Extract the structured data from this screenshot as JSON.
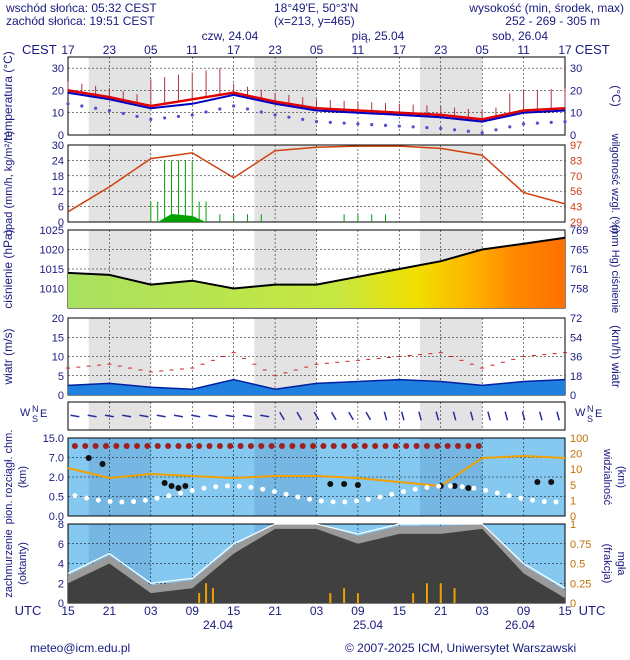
{
  "header": {
    "sunrise": "wschód słońca: 05:32 CEST",
    "sunset": "zachód słońca: 19:51 CEST",
    "coords": "18°49'E, 50°3'N",
    "grid": "(x=213, y=465)",
    "elev_title": "wysokość (min, środek, max)",
    "elev_values": "252 - 269 - 305 m"
  },
  "timezone_top": "CEST",
  "timezone_bottom": "UTC",
  "days_top": [
    "czw, 24.04",
    "pią, 25.04",
    "sob, 26.04"
  ],
  "hours_top": [
    "17",
    "23",
    "05",
    "11",
    "17",
    "23",
    "05",
    "11",
    "17",
    "23",
    "05",
    "11",
    "17"
  ],
  "hours_bottom": [
    "15",
    "21",
    "03",
    "09",
    "15",
    "21",
    "03",
    "09",
    "15",
    "21",
    "03",
    "09",
    "15"
  ],
  "days_bottom": [
    "24.04",
    "25.04",
    "26.04"
  ],
  "footer": {
    "email": "meteo@icm.edu.pl",
    "copyright": "© 2007-2025 ICM, Uniwersytet Warszawski"
  },
  "colors": {
    "text": "#1a1a80",
    "night": "#d0d0d0",
    "temp_line": "#e00000",
    "dew_line": "#0000c0",
    "humidity": "#d04010",
    "rain": "#00a000",
    "sky": "#85c8f0",
    "cloud_dark": "#404040",
    "fog": "#f0a000"
  },
  "chart_data": [
    {
      "type": "line",
      "panel": "temperature",
      "ylabel": "temperatura (°C)",
      "ylabel_right": "(°C)",
      "ylim": [
        0,
        35
      ],
      "yticks": [
        0,
        10,
        20,
        30
      ],
      "x_hours_from_start": [
        0,
        6,
        12,
        18,
        24,
        30,
        36,
        42,
        48,
        54,
        60,
        66,
        72
      ],
      "series": [
        {
          "values": [
            20,
            17,
            13,
            16,
            19,
            15,
            12,
            11,
            10,
            9,
            7,
            11,
            12
          ]
        },
        {
          "values": [
            19,
            16,
            12,
            14,
            18,
            14,
            11,
            10,
            9,
            8,
            6,
            10,
            11
          ]
        }
      ]
    },
    {
      "type": "line",
      "panel": "precipitation",
      "ylabel": "opad (mm/h, kg/m²/h)",
      "ylabel_right": "wilgotność wzgl. (%)",
      "ylim": [
        0,
        30
      ],
      "yticks": [
        0,
        6,
        12,
        18,
        24,
        30
      ],
      "yticks_right": [
        29,
        43,
        56,
        70,
        83,
        97
      ],
      "x_hours_from_start": [
        0,
        6,
        12,
        18,
        24,
        30,
        36,
        42,
        48,
        54,
        60,
        66,
        72
      ],
      "series": [
        {
          "values": [
            38,
            60,
            85,
            90,
            68,
            92,
            95,
            96,
            96,
            94,
            88,
            55,
            45
          ]
        }
      ]
    },
    {
      "type": "area",
      "panel": "pressure",
      "ylabel": "ciśnienie (hPa)",
      "ylabel_right": "(mm Hg) ciśnienie",
      "ylim": [
        1005,
        1025
      ],
      "yticks": [
        1010,
        1015,
        1020,
        1025
      ],
      "yticks_right": [
        758,
        761,
        765,
        769
      ],
      "x_hours_from_start": [
        0,
        6,
        12,
        18,
        24,
        30,
        36,
        42,
        48,
        54,
        60,
        66,
        72
      ],
      "series": [
        {
          "values": [
            1014,
            1013.5,
            1011,
            1012,
            1010,
            1011,
            1011,
            1013,
            1015,
            1017,
            1020,
            1021.5,
            1023
          ]
        }
      ]
    },
    {
      "type": "line",
      "panel": "wind",
      "ylabel": "wiatr (m/s)",
      "ylabel_right": "(km/h) wiatr",
      "ylim": [
        0,
        20
      ],
      "yticks": [
        0,
        5,
        10,
        15,
        20
      ],
      "yticks_right": [
        0,
        18,
        36,
        54,
        72
      ],
      "x_hours_from_start": [
        0,
        6,
        12,
        18,
        24,
        30,
        36,
        42,
        48,
        54,
        60,
        66,
        72
      ],
      "series": [
        {
          "values": [
            7,
            8,
            6,
            7,
            11,
            5,
            8,
            9,
            10,
            11,
            7,
            10,
            11
          ]
        },
        {
          "values": [
            2.5,
            3,
            2,
            1.5,
            4,
            1.5,
            3,
            3.5,
            4,
            3.5,
            2.5,
            3.5,
            4
          ]
        }
      ]
    },
    {
      "type": "scatter",
      "panel": "visibility",
      "ylabel": "pion. rozciągł. chm. (km)",
      "ylabel_right": "widzialność (km)",
      "yticks": [
        "0.0",
        "0.5",
        "2.0",
        "7.0",
        "15.0"
      ],
      "yticks_right": [
        0,
        1,
        5,
        10,
        20,
        100
      ]
    },
    {
      "type": "area",
      "panel": "clouds",
      "ylabel": "zachmurzenie (oktanty)",
      "ylabel_right": "(frakcja) mgła",
      "ylim": [
        0,
        8
      ],
      "yticks": [
        0,
        2,
        4,
        6,
        8
      ],
      "yticks_right": [
        "0",
        "0.25",
        "0.5",
        "0.75",
        "1"
      ],
      "x_hours_from_start": [
        0,
        6,
        12,
        18,
        24,
        30,
        36,
        42,
        48,
        54,
        60,
        66,
        72
      ],
      "series": [
        {
          "values": [
            2,
            4,
            1,
            1.5,
            5,
            7.5,
            7.5,
            6,
            7,
            7,
            7.5,
            3,
            0.5
          ]
        }
      ]
    }
  ]
}
